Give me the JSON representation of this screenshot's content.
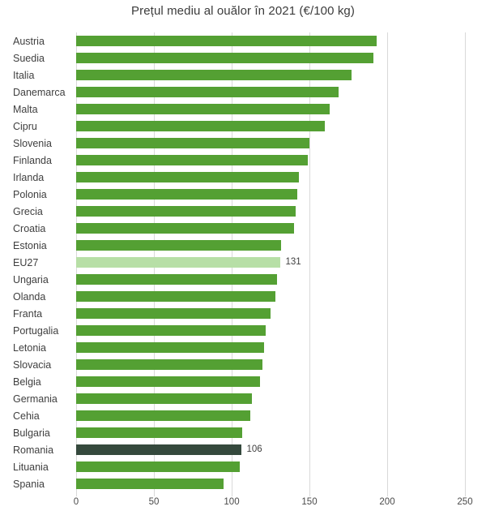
{
  "chart_data": {
    "type": "bar",
    "orientation": "horizontal",
    "title": "Prețul mediu al ouălor în 2021 (€/100 kg)",
    "xlabel": "",
    "ylabel": "",
    "xlim": [
      0,
      250
    ],
    "x_ticks": [
      0,
      50,
      100,
      150,
      200,
      250
    ],
    "grid": true,
    "legend": "none",
    "categories": [
      "Austria",
      "Suedia",
      "Italia",
      "Danemarca",
      "Malta",
      "Cipru",
      "Slovenia",
      "Finlanda",
      "Irlanda",
      "Polonia",
      "Grecia",
      "Croatia",
      "Estonia",
      "EU27",
      "Ungaria",
      "Olanda",
      "Franta",
      "Portugalia",
      "Letonia",
      "Slovacia",
      "Belgia",
      "Germania",
      "Cehia",
      "Bulgaria",
      "Romania",
      "Lituania",
      "Spania"
    ],
    "values": [
      193,
      191,
      177,
      169,
      163,
      160,
      150,
      149,
      143,
      142,
      141,
      140,
      132,
      131,
      129,
      128,
      125,
      122,
      121,
      120,
      118,
      113,
      112,
      107,
      106,
      105,
      95
    ],
    "bar_styles": {
      "EU27": "highlight_light",
      "Romania": "highlight_dark"
    },
    "data_labels": {
      "EU27": "131",
      "Romania": "106"
    },
    "colors": {
      "bar_default": "#54A033",
      "bar_highlight_light": "#B7DFA6",
      "bar_highlight_dark": "#35493D",
      "gridline": "#D9D9D9",
      "title_text": "#3C3C3C",
      "category_text": "#3F3F3F",
      "axis_text": "#4A4A4A",
      "value_label_text": "#3F3F3F",
      "background": "#FFFFFF"
    }
  }
}
